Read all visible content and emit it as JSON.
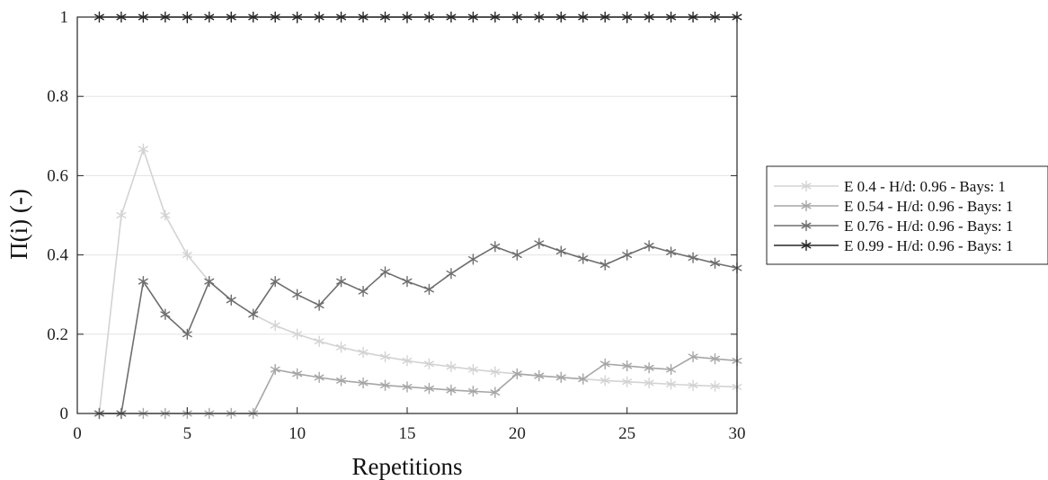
{
  "chart_data": {
    "type": "line",
    "xlabel": "Repetitions",
    "ylabel": "Π(i) (-)",
    "xlim": [
      0,
      30
    ],
    "ylim": [
      0,
      1
    ],
    "xticks": [
      0,
      5,
      10,
      15,
      20,
      25,
      30
    ],
    "xtick_labels": [
      "0",
      "5",
      "10",
      "15",
      "20",
      "25",
      "30"
    ],
    "yticks": [
      0,
      0.2,
      0.4,
      0.6,
      0.8,
      1
    ],
    "ytick_labels": [
      "0",
      "0.2",
      "0.4",
      "0.6",
      "0.8",
      "1"
    ],
    "grid": "horizontal",
    "legend_position": "right",
    "marker": "asterisk",
    "x": [
      1,
      2,
      3,
      4,
      5,
      6,
      7,
      8,
      9,
      10,
      11,
      12,
      13,
      14,
      15,
      16,
      17,
      18,
      19,
      20,
      21,
      22,
      23,
      24,
      25,
      26,
      27,
      28,
      29,
      30
    ],
    "series": [
      {
        "name": "E 0.4 - H/d: 0.96 - Bays: 1",
        "color": "#d3d3d3",
        "values": [
          0,
          0.5,
          0.667,
          0.5,
          0.4,
          0.333,
          0.286,
          0.25,
          0.222,
          0.2,
          0.182,
          0.167,
          0.154,
          0.143,
          0.133,
          0.125,
          0.118,
          0.111,
          0.105,
          0.1,
          0.095,
          0.091,
          0.087,
          0.083,
          0.08,
          0.077,
          0.074,
          0.071,
          0.069,
          0.067
        ]
      },
      {
        "name": "E 0.54 - H/d: 0.96 - Bays: 1",
        "color": "#a6a6a6",
        "values": [
          0,
          0,
          0,
          0,
          0,
          0,
          0,
          0,
          0.111,
          0.1,
          0.091,
          0.083,
          0.077,
          0.071,
          0.067,
          0.063,
          0.059,
          0.056,
          0.053,
          0.1,
          0.095,
          0.091,
          0.087,
          0.125,
          0.12,
          0.115,
          0.111,
          0.143,
          0.138,
          0.133
        ]
      },
      {
        "name": "E 0.76 - H/d: 0.96 - Bays: 1",
        "color": "#6e6e6e",
        "values": [
          0,
          0,
          0.333,
          0.25,
          0.2,
          0.333,
          0.286,
          0.25,
          0.333,
          0.3,
          0.273,
          0.333,
          0.308,
          0.357,
          0.333,
          0.313,
          0.353,
          0.389,
          0.421,
          0.4,
          0.429,
          0.409,
          0.391,
          0.375,
          0.4,
          0.423,
          0.407,
          0.393,
          0.379,
          0.367
        ]
      },
      {
        "name": "E 0.99 - H/d: 0.96 - Bays: 1",
        "color": "#262626",
        "values": [
          1,
          1,
          1,
          1,
          1,
          1,
          1,
          1,
          1,
          1,
          1,
          1,
          1,
          1,
          1,
          1,
          1,
          1,
          1,
          1,
          1,
          1,
          1,
          1,
          1,
          1,
          1,
          1,
          1,
          1
        ]
      }
    ]
  }
}
